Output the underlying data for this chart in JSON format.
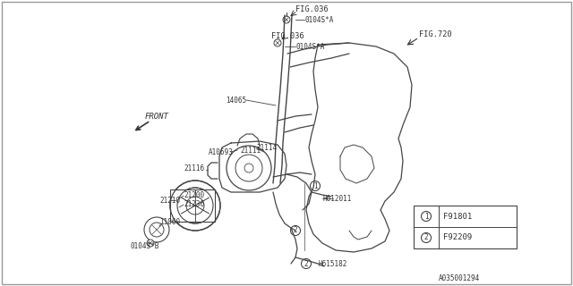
{
  "background_color": "#ffffff",
  "line_color": "#444444",
  "text_color": "#333333",
  "diagram_label": "A035001294",
  "legend": [
    {
      "num": "1",
      "code": "F91801"
    },
    {
      "num": "2",
      "code": "F92209"
    }
  ]
}
